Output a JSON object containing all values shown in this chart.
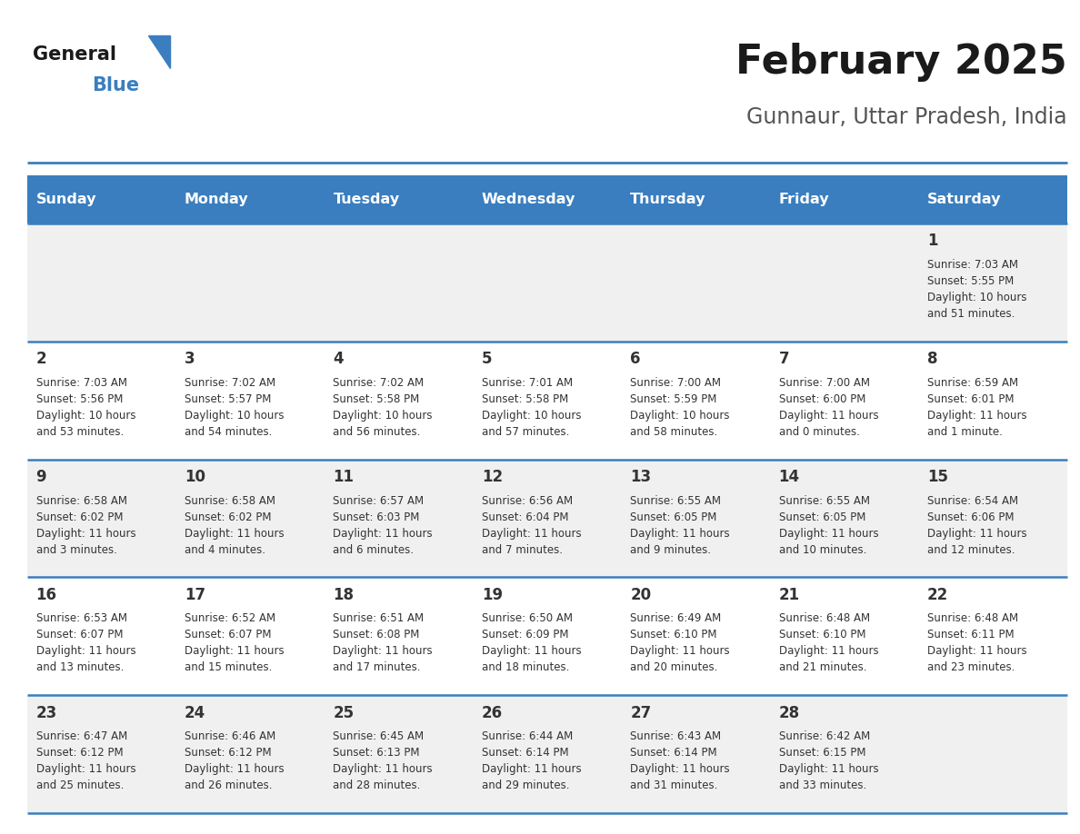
{
  "title": "February 2025",
  "subtitle": "Gunnaur, Uttar Pradesh, India",
  "days_of_week": [
    "Sunday",
    "Monday",
    "Tuesday",
    "Wednesday",
    "Thursday",
    "Friday",
    "Saturday"
  ],
  "header_bg": "#3a7ebf",
  "header_text": "#ffffff",
  "cell_bg_odd": "#f0f0f0",
  "cell_bg_even": "#ffffff",
  "day_num_color": "#333333",
  "info_text_color": "#333333",
  "border_color": "#3a7ebf",
  "logo_general_color": "#1a1a1a",
  "logo_blue_color": "#3a7ebf",
  "title_color": "#1a1a1a",
  "subtitle_color": "#555555",
  "calendar_data": [
    {
      "day": 1,
      "col": 6,
      "row": 0,
      "sunrise": "7:03 AM",
      "sunset": "5:55 PM",
      "daylight": "10 hours\nand 51 minutes."
    },
    {
      "day": 2,
      "col": 0,
      "row": 1,
      "sunrise": "7:03 AM",
      "sunset": "5:56 PM",
      "daylight": "10 hours\nand 53 minutes."
    },
    {
      "day": 3,
      "col": 1,
      "row": 1,
      "sunrise": "7:02 AM",
      "sunset": "5:57 PM",
      "daylight": "10 hours\nand 54 minutes."
    },
    {
      "day": 4,
      "col": 2,
      "row": 1,
      "sunrise": "7:02 AM",
      "sunset": "5:58 PM",
      "daylight": "10 hours\nand 56 minutes."
    },
    {
      "day": 5,
      "col": 3,
      "row": 1,
      "sunrise": "7:01 AM",
      "sunset": "5:58 PM",
      "daylight": "10 hours\nand 57 minutes."
    },
    {
      "day": 6,
      "col": 4,
      "row": 1,
      "sunrise": "7:00 AM",
      "sunset": "5:59 PM",
      "daylight": "10 hours\nand 58 minutes."
    },
    {
      "day": 7,
      "col": 5,
      "row": 1,
      "sunrise": "7:00 AM",
      "sunset": "6:00 PM",
      "daylight": "11 hours\nand 0 minutes."
    },
    {
      "day": 8,
      "col": 6,
      "row": 1,
      "sunrise": "6:59 AM",
      "sunset": "6:01 PM",
      "daylight": "11 hours\nand 1 minute."
    },
    {
      "day": 9,
      "col": 0,
      "row": 2,
      "sunrise": "6:58 AM",
      "sunset": "6:02 PM",
      "daylight": "11 hours\nand 3 minutes."
    },
    {
      "day": 10,
      "col": 1,
      "row": 2,
      "sunrise": "6:58 AM",
      "sunset": "6:02 PM",
      "daylight": "11 hours\nand 4 minutes."
    },
    {
      "day": 11,
      "col": 2,
      "row": 2,
      "sunrise": "6:57 AM",
      "sunset": "6:03 PM",
      "daylight": "11 hours\nand 6 minutes."
    },
    {
      "day": 12,
      "col": 3,
      "row": 2,
      "sunrise": "6:56 AM",
      "sunset": "6:04 PM",
      "daylight": "11 hours\nand 7 minutes."
    },
    {
      "day": 13,
      "col": 4,
      "row": 2,
      "sunrise": "6:55 AM",
      "sunset": "6:05 PM",
      "daylight": "11 hours\nand 9 minutes."
    },
    {
      "day": 14,
      "col": 5,
      "row": 2,
      "sunrise": "6:55 AM",
      "sunset": "6:05 PM",
      "daylight": "11 hours\nand 10 minutes."
    },
    {
      "day": 15,
      "col": 6,
      "row": 2,
      "sunrise": "6:54 AM",
      "sunset": "6:06 PM",
      "daylight": "11 hours\nand 12 minutes."
    },
    {
      "day": 16,
      "col": 0,
      "row": 3,
      "sunrise": "6:53 AM",
      "sunset": "6:07 PM",
      "daylight": "11 hours\nand 13 minutes."
    },
    {
      "day": 17,
      "col": 1,
      "row": 3,
      "sunrise": "6:52 AM",
      "sunset": "6:07 PM",
      "daylight": "11 hours\nand 15 minutes."
    },
    {
      "day": 18,
      "col": 2,
      "row": 3,
      "sunrise": "6:51 AM",
      "sunset": "6:08 PM",
      "daylight": "11 hours\nand 17 minutes."
    },
    {
      "day": 19,
      "col": 3,
      "row": 3,
      "sunrise": "6:50 AM",
      "sunset": "6:09 PM",
      "daylight": "11 hours\nand 18 minutes."
    },
    {
      "day": 20,
      "col": 4,
      "row": 3,
      "sunrise": "6:49 AM",
      "sunset": "6:10 PM",
      "daylight": "11 hours\nand 20 minutes."
    },
    {
      "day": 21,
      "col": 5,
      "row": 3,
      "sunrise": "6:48 AM",
      "sunset": "6:10 PM",
      "daylight": "11 hours\nand 21 minutes."
    },
    {
      "day": 22,
      "col": 6,
      "row": 3,
      "sunrise": "6:48 AM",
      "sunset": "6:11 PM",
      "daylight": "11 hours\nand 23 minutes."
    },
    {
      "day": 23,
      "col": 0,
      "row": 4,
      "sunrise": "6:47 AM",
      "sunset": "6:12 PM",
      "daylight": "11 hours\nand 25 minutes."
    },
    {
      "day": 24,
      "col": 1,
      "row": 4,
      "sunrise": "6:46 AM",
      "sunset": "6:12 PM",
      "daylight": "11 hours\nand 26 minutes."
    },
    {
      "day": 25,
      "col": 2,
      "row": 4,
      "sunrise": "6:45 AM",
      "sunset": "6:13 PM",
      "daylight": "11 hours\nand 28 minutes."
    },
    {
      "day": 26,
      "col": 3,
      "row": 4,
      "sunrise": "6:44 AM",
      "sunset": "6:14 PM",
      "daylight": "11 hours\nand 29 minutes."
    },
    {
      "day": 27,
      "col": 4,
      "row": 4,
      "sunrise": "6:43 AM",
      "sunset": "6:14 PM",
      "daylight": "11 hours\nand 31 minutes."
    },
    {
      "day": 28,
      "col": 5,
      "row": 4,
      "sunrise": "6:42 AM",
      "sunset": "6:15 PM",
      "daylight": "11 hours\nand 33 minutes."
    }
  ]
}
